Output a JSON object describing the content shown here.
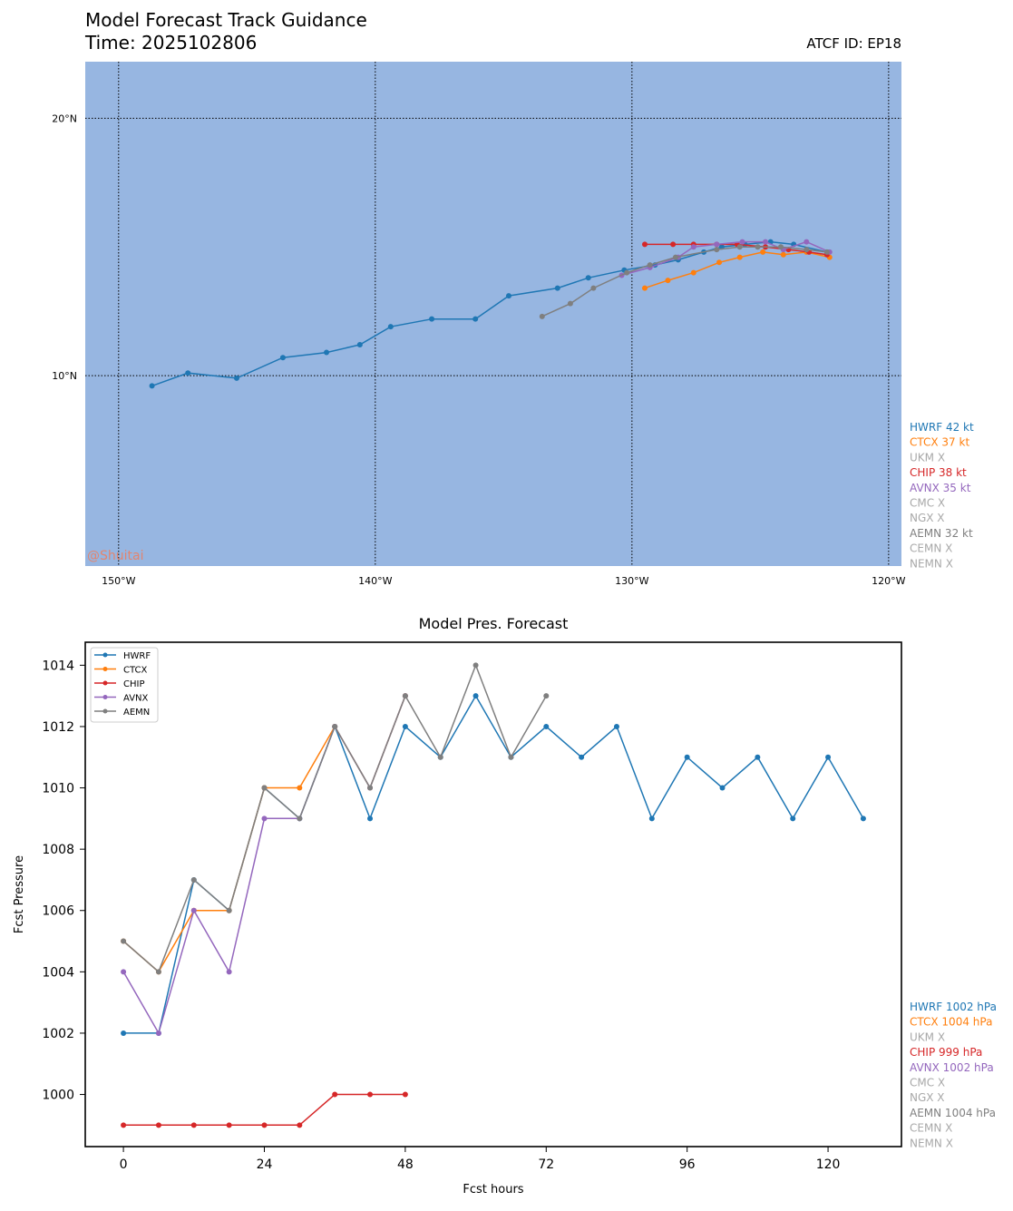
{
  "header": {
    "title": "Model Forecast Track Guidance",
    "time": "Time: 2025102806",
    "atcf": "ATCF ID: EP18"
  },
  "watermark": "@Shuitai",
  "colors": {
    "ocean": "#97b6e1",
    "HWRF": "#1f77b4",
    "CTCX": "#ff7f0e",
    "CHIP": "#d62728",
    "AVNX": "#9467bd",
    "AEMN": "#7f7f7f",
    "absent": "#a8a8a8",
    "watermark": "#f07c5b"
  },
  "map": {
    "lon_range": [
      -151.3,
      -119.5
    ],
    "lat_range": [
      2.6,
      22.2
    ],
    "lon_ticks": [
      {
        "value": -150,
        "label": "150°W"
      },
      {
        "value": -140,
        "label": "140°W"
      },
      {
        "value": -130,
        "label": "130°W"
      },
      {
        "value": -120,
        "label": "120°W"
      }
    ],
    "lat_ticks": [
      {
        "value": 20,
        "label": "20°N"
      },
      {
        "value": 10,
        "label": "10°N"
      }
    ],
    "tracks": [
      {
        "name": "HWRF",
        "points": [
          [
            -122.4,
            14.8
          ],
          [
            -123.7,
            15.1
          ],
          [
            -124.6,
            15.2
          ],
          [
            -125.6,
            15.1
          ],
          [
            -126.5,
            15.0
          ],
          [
            -127.2,
            14.8
          ],
          [
            -128.2,
            14.5
          ],
          [
            -129.1,
            14.3
          ],
          [
            -130.3,
            14.1
          ],
          [
            -131.7,
            13.8
          ],
          [
            -132.9,
            13.4
          ],
          [
            -134.8,
            13.1
          ],
          [
            -136.1,
            12.2
          ],
          [
            -137.8,
            12.2
          ],
          [
            -139.4,
            11.9
          ],
          [
            -140.6,
            11.2
          ],
          [
            -141.9,
            10.9
          ],
          [
            -143.6,
            10.7
          ],
          [
            -145.4,
            9.9
          ],
          [
            -147.3,
            10.1
          ],
          [
            -148.7,
            9.6
          ]
        ]
      },
      {
        "name": "CTCX",
        "points": [
          [
            -122.3,
            14.6
          ],
          [
            -123.2,
            14.8
          ],
          [
            -124.1,
            14.7
          ],
          [
            -124.9,
            14.8
          ],
          [
            -125.8,
            14.6
          ],
          [
            -126.6,
            14.4
          ],
          [
            -127.6,
            14.0
          ],
          [
            -128.6,
            13.7
          ],
          [
            -129.5,
            13.4
          ]
        ]
      },
      {
        "name": "CHIP",
        "points": [
          [
            -122.4,
            14.7
          ],
          [
            -123.1,
            14.8
          ],
          [
            -123.9,
            14.9
          ],
          [
            -124.8,
            15.0
          ],
          [
            -125.9,
            15.1
          ],
          [
            -126.7,
            15.1
          ],
          [
            -127.6,
            15.1
          ],
          [
            -128.4,
            15.1
          ],
          [
            -129.5,
            15.1
          ]
        ]
      },
      {
        "name": "AVNX",
        "points": [
          [
            -122.3,
            14.8
          ],
          [
            -123.2,
            15.2
          ],
          [
            -124.1,
            14.9
          ],
          [
            -124.8,
            15.2
          ],
          [
            -125.7,
            15.2
          ],
          [
            -126.7,
            15.1
          ],
          [
            -127.6,
            15.0
          ],
          [
            -128.2,
            14.6
          ],
          [
            -129.3,
            14.2
          ],
          [
            -130.4,
            13.9
          ]
        ]
      },
      {
        "name": "AEMN",
        "points": [
          [
            -122.4,
            14.8
          ],
          [
            -123.2,
            14.9
          ],
          [
            -124.2,
            15.0
          ],
          [
            -125.1,
            15.0
          ],
          [
            -125.8,
            15.0
          ],
          [
            -126.7,
            14.9
          ],
          [
            -128.3,
            14.6
          ],
          [
            -129.3,
            14.3
          ],
          [
            -130.2,
            14.0
          ],
          [
            -131.5,
            13.4
          ],
          [
            -132.4,
            12.8
          ],
          [
            -133.5,
            12.3
          ]
        ]
      }
    ],
    "legend": [
      {
        "text": "HWRF 42 kt",
        "color_key": "HWRF"
      },
      {
        "text": "CTCX 37 kt",
        "color_key": "CTCX"
      },
      {
        "text": "UKM X",
        "color_key": "absent"
      },
      {
        "text": "CHIP 38 kt",
        "color_key": "CHIP"
      },
      {
        "text": "AVNX 35 kt",
        "color_key": "AVNX"
      },
      {
        "text": "CMC X",
        "color_key": "absent"
      },
      {
        "text": "NGX X",
        "color_key": "absent"
      },
      {
        "text": "AEMN 32 kt",
        "color_key": "AEMN"
      },
      {
        "text": "CEMN X",
        "color_key": "absent"
      },
      {
        "text": "NEMN X",
        "color_key": "absent"
      }
    ]
  },
  "chart_data": {
    "type": "line",
    "title": "Model Pres. Forecast",
    "xlabel": "Fcst hours",
    "ylabel": "Fcst Pressure",
    "xlim": [
      -6.5,
      132.5
    ],
    "ylim": [
      998.3,
      1014.75
    ],
    "xticks": [
      0,
      24,
      48,
      72,
      96,
      120
    ],
    "yticks": [
      1000,
      1002,
      1004,
      1006,
      1008,
      1010,
      1012,
      1014
    ],
    "series": [
      {
        "name": "HWRF",
        "x": [
          0,
          6,
          12,
          18,
          24,
          30,
          36,
          42,
          48,
          54,
          60,
          66,
          72,
          78,
          84,
          90,
          96,
          102,
          108,
          114,
          120,
          126
        ],
        "values": [
          1002,
          1002,
          1007,
          1006,
          1010,
          1009,
          1012,
          1009,
          1012,
          1011,
          1013,
          1011,
          1012,
          1011,
          1012,
          1009,
          1011,
          1010,
          1011,
          1009,
          1011,
          1009
        ]
      },
      {
        "name": "CTCX",
        "x": [
          0,
          6,
          12,
          18,
          24,
          30,
          36,
          42,
          48
        ],
        "values": [
          1005,
          1004,
          1006,
          1006,
          1010,
          1010,
          1012,
          1010,
          1013
        ]
      },
      {
        "name": "CHIP",
        "x": [
          0,
          6,
          12,
          18,
          24,
          30,
          36,
          42,
          48
        ],
        "values": [
          999,
          999,
          999,
          999,
          999,
          999,
          1000,
          1000,
          1000
        ]
      },
      {
        "name": "AVNX",
        "x": [
          0,
          6,
          12,
          18,
          24,
          30,
          36,
          42,
          48
        ],
        "values": [
          1004,
          1002,
          1006,
          1004,
          1009,
          1009,
          1012,
          1010,
          1013
        ]
      },
      {
        "name": "AEMN",
        "x": [
          0,
          6,
          12,
          18,
          24,
          30,
          36,
          42,
          48,
          54,
          60,
          66,
          72
        ],
        "values": [
          1005,
          1004,
          1007,
          1006,
          1010,
          1009,
          1012,
          1010,
          1013,
          1011,
          1014,
          1011,
          1013
        ]
      }
    ],
    "legend_position": "top-left",
    "side_legend": [
      {
        "text": "HWRF 1002 hPa",
        "color_key": "HWRF"
      },
      {
        "text": "CTCX 1004 hPa",
        "color_key": "CTCX"
      },
      {
        "text": "UKM X",
        "color_key": "absent"
      },
      {
        "text": "CHIP 999 hPa",
        "color_key": "CHIP"
      },
      {
        "text": "AVNX 1002 hPa",
        "color_key": "AVNX"
      },
      {
        "text": "CMC X",
        "color_key": "absent"
      },
      {
        "text": "NGX X",
        "color_key": "absent"
      },
      {
        "text": "AEMN 1004 hPa",
        "color_key": "AEMN"
      },
      {
        "text": "CEMN X",
        "color_key": "absent"
      },
      {
        "text": "NEMN X",
        "color_key": "absent"
      }
    ]
  }
}
